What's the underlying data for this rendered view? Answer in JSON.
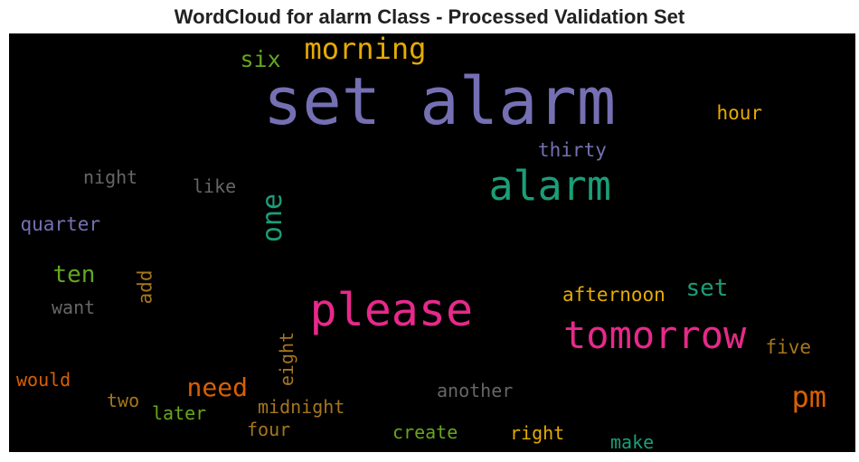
{
  "title": "WordCloud for alarm Class - Processed Validation Set",
  "chart_data": {
    "type": "wordcloud",
    "colors": {
      "purple": "#7570b3",
      "green": "#1b9e77",
      "pink": "#e7298a",
      "orange": "#d95f02",
      "gold": "#e6ab02",
      "lime": "#66a61e",
      "brown": "#a6761d",
      "gray": "#666666"
    },
    "words": [
      {
        "text": "set alarm",
        "color": "purple",
        "weight": 1.0
      },
      {
        "text": "please",
        "color": "pink",
        "weight": 0.7
      },
      {
        "text": "tomorrow",
        "color": "pink",
        "weight": 0.58
      },
      {
        "text": "alarm",
        "color": "green",
        "weight": 0.6
      },
      {
        "text": "morning",
        "color": "gold",
        "weight": 0.44
      },
      {
        "text": "pm",
        "color": "orange",
        "weight": 0.44
      },
      {
        "text": "one",
        "color": "green",
        "weight": 0.4,
        "vertical": true
      },
      {
        "text": "need",
        "color": "orange",
        "weight": 0.38
      },
      {
        "text": "ten",
        "color": "lime",
        "weight": 0.36
      },
      {
        "text": "set",
        "color": "green",
        "weight": 0.36
      },
      {
        "text": "six",
        "color": "lime",
        "weight": 0.34
      },
      {
        "text": "afternoon",
        "color": "gold",
        "weight": 0.3
      },
      {
        "text": "hour",
        "color": "gold",
        "weight": 0.29
      },
      {
        "text": "five",
        "color": "brown",
        "weight": 0.29
      },
      {
        "text": "thirty",
        "color": "purple",
        "weight": 0.29
      },
      {
        "text": "quarter",
        "color": "purple",
        "weight": 0.28
      },
      {
        "text": "add",
        "color": "brown",
        "weight": 0.28,
        "vertical": true
      },
      {
        "text": "midnight",
        "color": "brown",
        "weight": 0.28
      },
      {
        "text": "another",
        "color": "gray",
        "weight": 0.28
      },
      {
        "text": "right",
        "color": "gold",
        "weight": 0.28
      },
      {
        "text": "night",
        "color": "gray",
        "weight": 0.27
      },
      {
        "text": "like",
        "color": "gray",
        "weight": 0.27
      },
      {
        "text": "want",
        "color": "gray",
        "weight": 0.27
      },
      {
        "text": "would",
        "color": "orange",
        "weight": 0.27
      },
      {
        "text": "two",
        "color": "brown",
        "weight": 0.27
      },
      {
        "text": "later",
        "color": "lime",
        "weight": 0.27
      },
      {
        "text": "four",
        "color": "brown",
        "weight": 0.27
      },
      {
        "text": "create",
        "color": "lime",
        "weight": 0.27
      },
      {
        "text": "make",
        "color": "green",
        "weight": 0.27
      },
      {
        "text": "eight",
        "color": "brown",
        "weight": 0.26,
        "vertical": true
      }
    ]
  }
}
